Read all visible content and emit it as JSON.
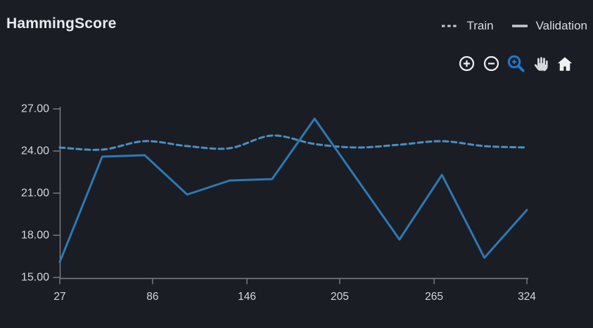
{
  "header": {
    "title": "HammingScore"
  },
  "legend": {
    "items": [
      {
        "label": "Train",
        "marker": "dashed-line"
      },
      {
        "label": "Validation",
        "marker": "solid-line"
      }
    ]
  },
  "toolbar": {
    "buttons": [
      {
        "icon": "zoom-in-circle-icon",
        "active": false
      },
      {
        "icon": "zoom-out-circle-icon",
        "active": false
      },
      {
        "icon": "box-zoom-magnifier-icon",
        "active": true
      },
      {
        "icon": "pan-hand-icon",
        "active": false
      },
      {
        "icon": "reset-home-icon",
        "active": false
      }
    ]
  },
  "colors": {
    "background": "#1b1d24",
    "train_line": "#4a8fc2",
    "validation_line": "#2e79b2",
    "axis": "#7e8189",
    "tick_text": "#d5d7dc",
    "title_text": "#e9ebef",
    "legend_text": "#d9dbe1",
    "active_tool": "#1d79d2",
    "icon_white": "#f0f1f3",
    "hand_gray": "#d6d8dc"
  },
  "chart_data": {
    "type": "line",
    "title": "HammingScore",
    "x": [
      27,
      54,
      81,
      108,
      135,
      162,
      189,
      216,
      243,
      270,
      297,
      324
    ],
    "series": [
      {
        "name": "Train",
        "style": "dashed",
        "values": [
          24.25,
          24.1,
          24.7,
          24.35,
          24.2,
          25.1,
          24.5,
          24.25,
          24.45,
          24.7,
          24.35,
          24.25
        ]
      },
      {
        "name": "Validation",
        "style": "solid",
        "values": [
          16.1,
          23.6,
          23.7,
          20.9,
          21.9,
          22.0,
          26.3,
          22.0,
          17.7,
          22.3,
          16.4,
          19.8
        ]
      }
    ],
    "xlabel": "",
    "ylabel": "",
    "xlim": [
      27,
      324
    ],
    "ylim": [
      15,
      27
    ],
    "x_ticks": [
      27,
      86,
      146,
      205,
      265,
      324
    ],
    "x_tick_labels": [
      "27",
      "86",
      "146",
      "205",
      "265",
      "324"
    ],
    "y_ticks": [
      27,
      24,
      21,
      18,
      15
    ],
    "y_tick_labels": [
      "27.00",
      "24.00",
      "21.00",
      "18.00",
      "15.00"
    ],
    "grid": false,
    "legend_position": "top-right"
  }
}
